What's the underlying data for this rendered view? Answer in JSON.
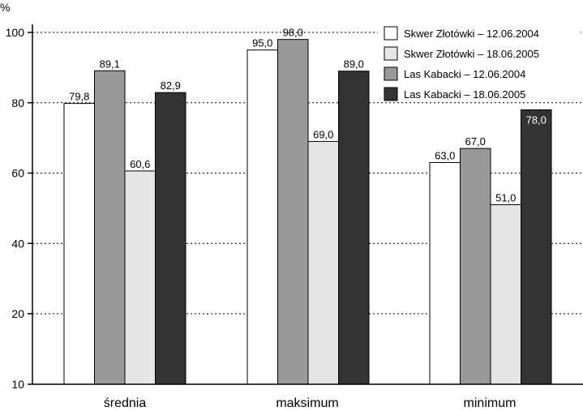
{
  "chart_data": {
    "type": "bar",
    "ylabel": "%",
    "ylim": [
      10,
      100
    ],
    "yticks": [
      10,
      20,
      40,
      60,
      80,
      100
    ],
    "grid": "dotted horizontal",
    "legend_position": "top-right",
    "categories": [
      "średnia",
      "maksimum",
      "minimum"
    ],
    "series": [
      {
        "name": "Skwer Złotówki – 12.06.2004",
        "color": "#ffffff",
        "values": [
          79.8,
          95.0,
          63.0
        ],
        "labels": [
          "79,8",
          "95,0",
          "63,0"
        ]
      },
      {
        "name": "Las Kabacki – 12.06.2004",
        "color": "#999999",
        "values": [
          89.1,
          98.0,
          67.0
        ],
        "labels": [
          "89,1",
          "98,0",
          "67,0"
        ]
      },
      {
        "name": "Skwer Złotówki – 18.06.2005",
        "color": "#e6e6e6",
        "values": [
          60.6,
          69.0,
          51.0
        ],
        "labels": [
          "60,6",
          "69,0",
          "51,0"
        ]
      },
      {
        "name": "Las Kabacki – 18.06.2005",
        "color": "#333333",
        "values": [
          82.9,
          89.0,
          78.0
        ],
        "labels": [
          "82,9",
          "89,0",
          "78,0"
        ]
      }
    ],
    "legend_order": [
      0,
      2,
      1,
      3
    ]
  }
}
